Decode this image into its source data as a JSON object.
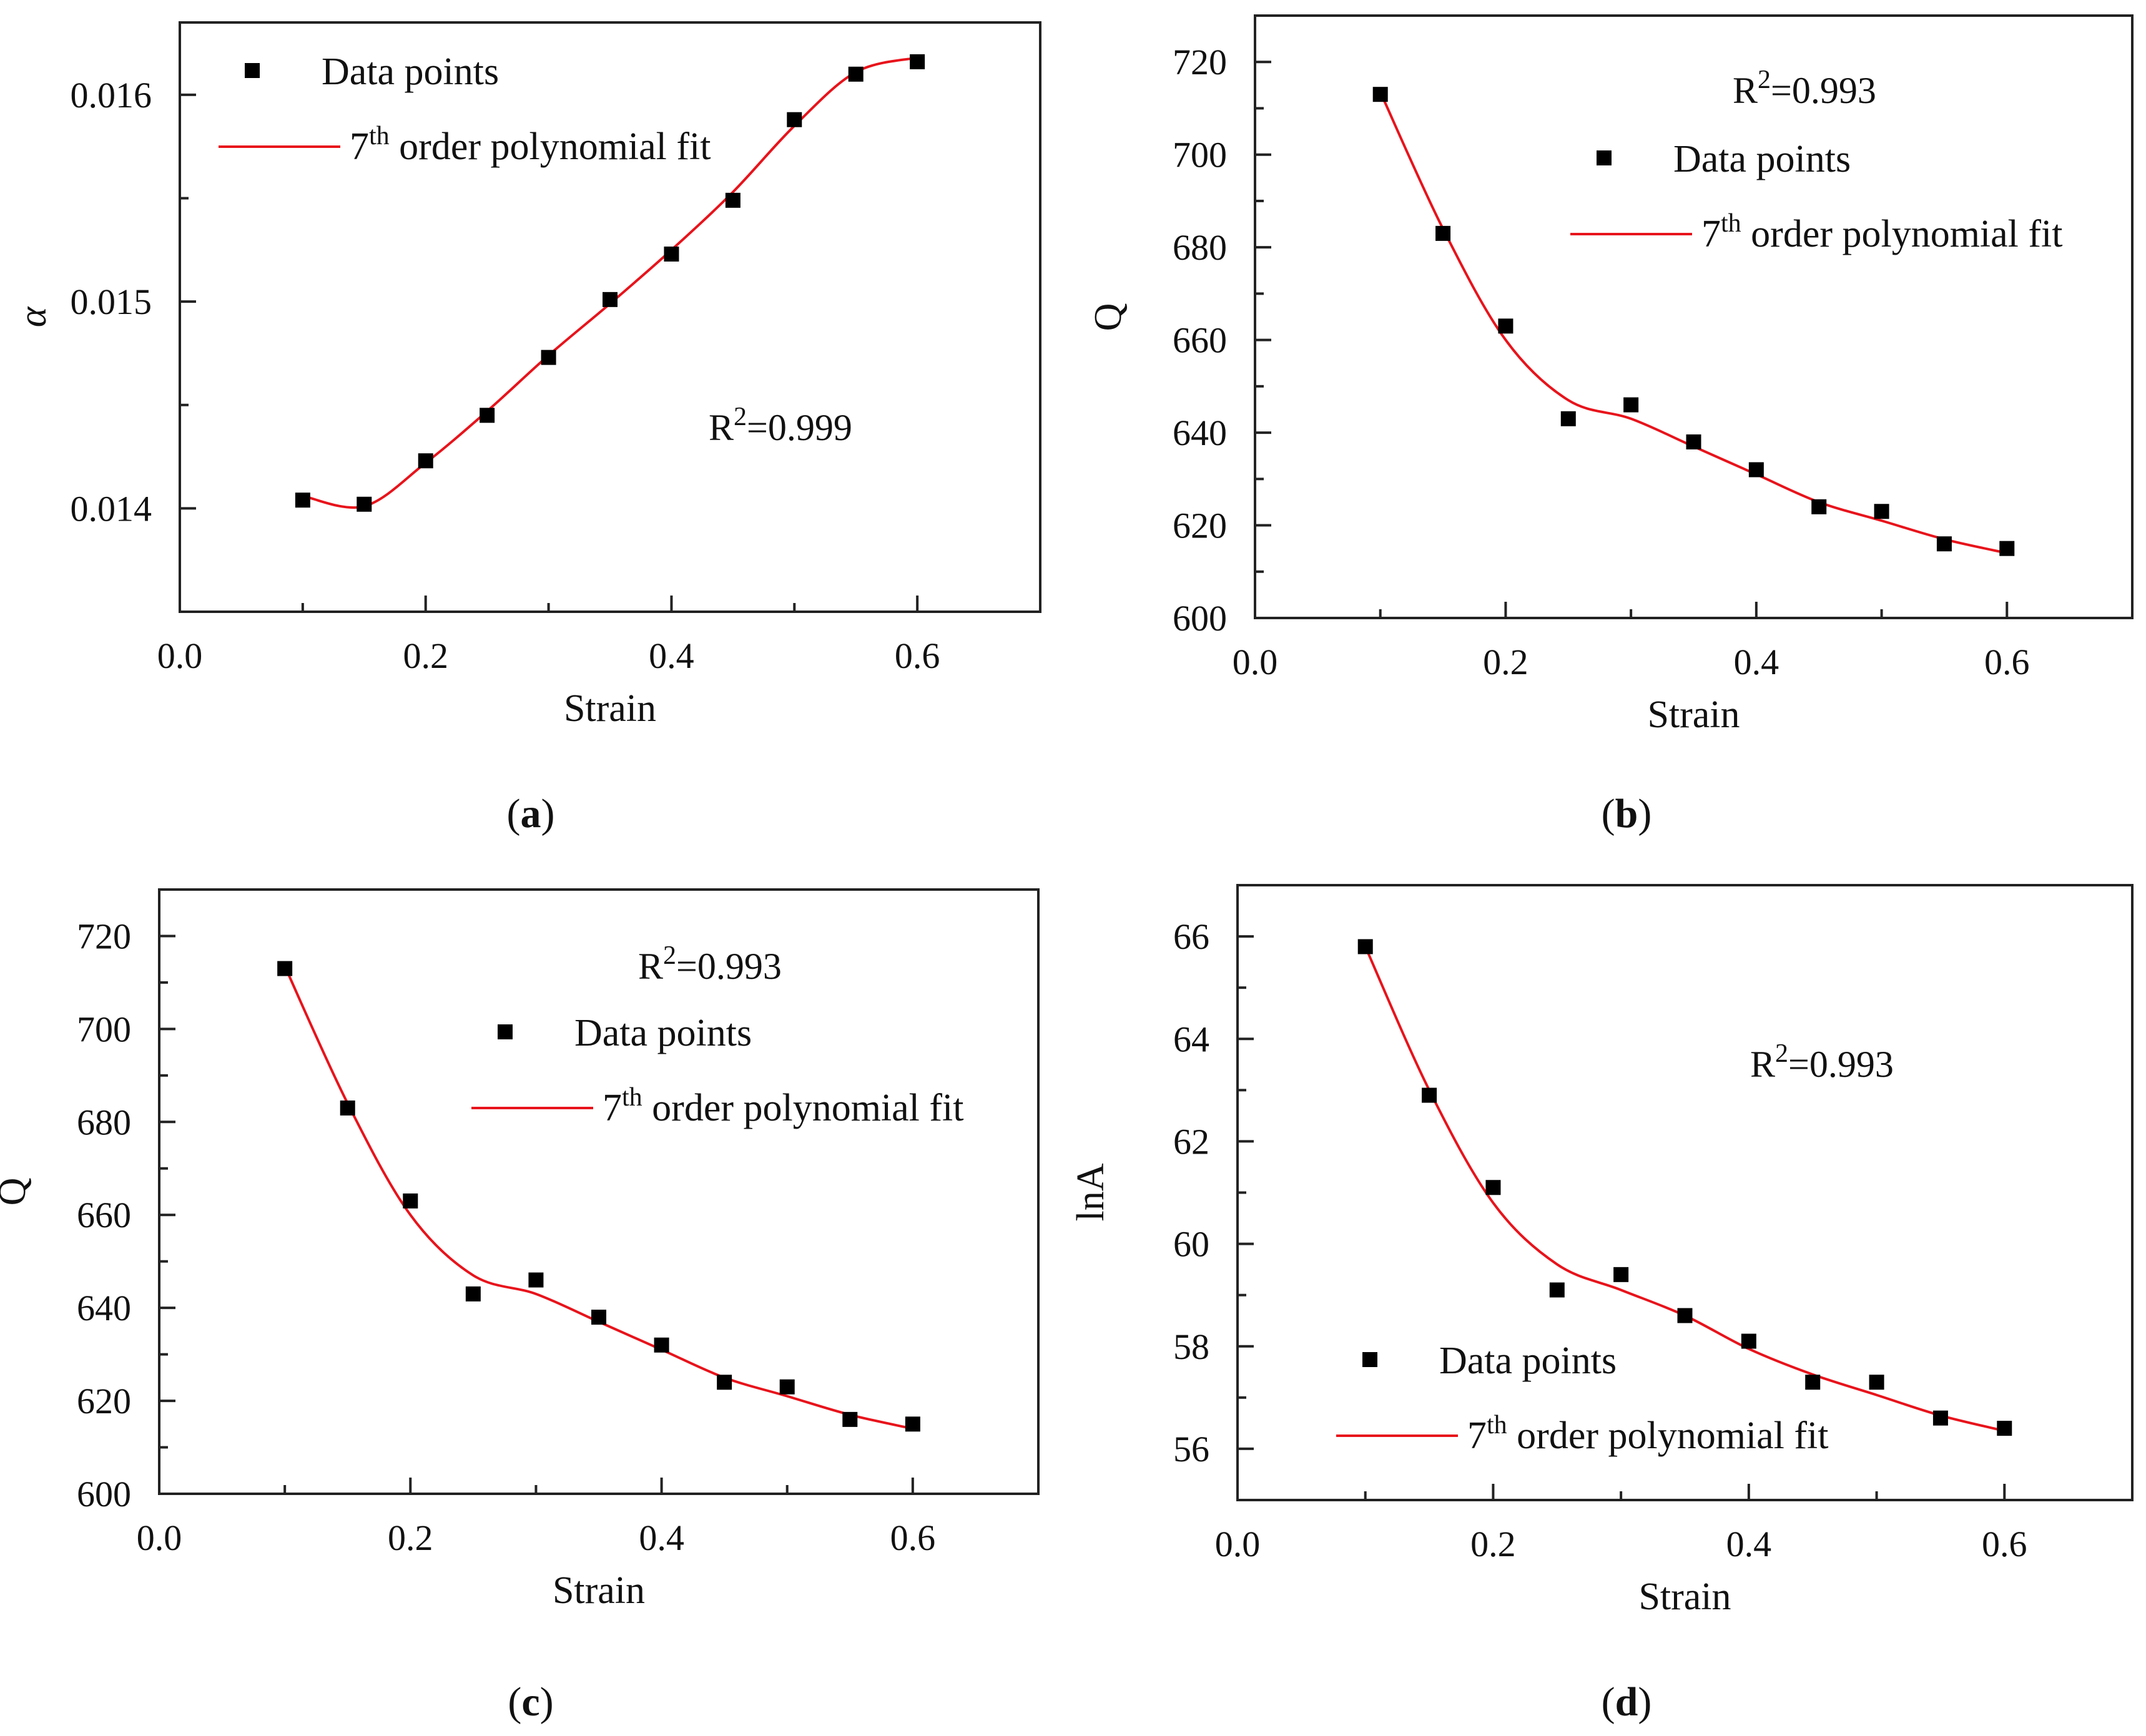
{
  "colors": {
    "fit": "#e8131b",
    "points": "#000000"
  },
  "chart_data": [
    {
      "id": "a",
      "type": "scatter",
      "caption_letter": "a",
      "xlabel": "Strain",
      "ylabel": "α",
      "xlim": [
        0.0,
        0.7
      ],
      "ylim": [
        0.0135,
        0.01635
      ],
      "xticks": [
        "0.0",
        "0.2",
        "0.4",
        "0.6"
      ],
      "yticks": [
        "0.014",
        "0.015",
        "0.016"
      ],
      "legend": {
        "position": "top-left",
        "points_label": "Data points",
        "fit_order": "7",
        "fit_sup": "th",
        "fit_label": " order polynomial fit"
      },
      "r2_base": "R",
      "r2_sup": "2",
      "r2_value": "=0.999",
      "x": [
        0.1,
        0.15,
        0.2,
        0.25,
        0.3,
        0.35,
        0.4,
        0.45,
        0.5,
        0.55,
        0.6
      ],
      "series": [
        {
          "name": "Data points",
          "values": [
            0.01404,
            0.01402,
            0.01423,
            0.01445,
            0.01473,
            0.01501,
            0.01523,
            0.01549,
            0.01588,
            0.0161,
            0.01616
          ]
        },
        {
          "name": "7th order polynomial fit",
          "values": [
            0.01406,
            0.01401,
            0.01422,
            0.01447,
            0.01474,
            0.01499,
            0.01525,
            0.01553,
            0.01585,
            0.01611,
            0.01618
          ]
        }
      ]
    },
    {
      "id": "b",
      "type": "scatter",
      "caption_letter": "b",
      "xlabel": "Strain",
      "ylabel": "Q",
      "xlim": [
        0.0,
        0.7
      ],
      "ylim": [
        600,
        730
      ],
      "xticks": [
        "0.0",
        "0.2",
        "0.4",
        "0.6"
      ],
      "yticks": [
        "600",
        "620",
        "640",
        "660",
        "680",
        "700",
        "720"
      ],
      "legend": {
        "position": "top-right",
        "points_label": "Data points",
        "fit_order": "7",
        "fit_sup": "th",
        "fit_label": " order polynomial fit"
      },
      "r2_base": "R",
      "r2_sup": "2",
      "r2_value": "=0.993",
      "x": [
        0.1,
        0.15,
        0.2,
        0.25,
        0.3,
        0.35,
        0.4,
        0.45,
        0.5,
        0.55,
        0.6
      ],
      "series": [
        {
          "name": "Data points",
          "values": [
            713,
            683,
            663,
            643,
            646,
            638,
            632,
            624,
            623,
            616,
            615
          ]
        },
        {
          "name": "7th order polynomial fit",
          "values": [
            713.5,
            684,
            660,
            647,
            643,
            637,
            631,
            625,
            621,
            617,
            614
          ]
        }
      ]
    },
    {
      "id": "c",
      "type": "scatter",
      "caption_letter": "c",
      "xlabel": "Strain",
      "ylabel": "Q",
      "xlim": [
        0.0,
        0.7
      ],
      "ylim": [
        600,
        730
      ],
      "xticks": [
        "0.0",
        "0.2",
        "0.4",
        "0.6"
      ],
      "yticks": [
        "600",
        "620",
        "640",
        "660",
        "680",
        "700",
        "720"
      ],
      "legend": {
        "position": "top-right",
        "points_label": "Data points",
        "fit_order": "7",
        "fit_sup": "th",
        "fit_label": " order polynomial fit"
      },
      "r2_base": "R",
      "r2_sup": "2",
      "r2_value": "=0.993",
      "x": [
        0.1,
        0.15,
        0.2,
        0.25,
        0.3,
        0.35,
        0.4,
        0.45,
        0.5,
        0.55,
        0.6
      ],
      "series": [
        {
          "name": "Data points",
          "values": [
            713,
            683,
            663,
            643,
            646,
            638,
            632,
            624,
            623,
            616,
            615
          ]
        },
        {
          "name": "7th order polynomial fit",
          "values": [
            713.5,
            684,
            660,
            647,
            643,
            637,
            631,
            625,
            621,
            617,
            614
          ]
        }
      ]
    },
    {
      "id": "d",
      "type": "scatter",
      "caption_letter": "d",
      "xlabel": "Strain",
      "ylabel": "lnA",
      "xlim": [
        0.0,
        0.7
      ],
      "ylim": [
        55.0,
        67.0
      ],
      "xticks": [
        "0.0",
        "0.2",
        "0.4",
        "0.6"
      ],
      "yticks": [
        "56",
        "58",
        "60",
        "62",
        "64",
        "66"
      ],
      "legend": {
        "position": "bottom-left",
        "points_label": "Data points",
        "fit_order": "7",
        "fit_sup": "th",
        "fit_label": " order polynomial fit"
      },
      "r2_base": "R",
      "r2_sup": "2",
      "r2_value": "=0.993",
      "x": [
        0.1,
        0.15,
        0.2,
        0.25,
        0.3,
        0.35,
        0.4,
        0.45,
        0.5,
        0.55,
        0.6
      ],
      "series": [
        {
          "name": "Data points",
          "values": [
            65.8,
            62.9,
            61.1,
            59.1,
            59.4,
            58.6,
            58.1,
            57.3,
            57.3,
            56.6,
            56.4
          ]
        },
        {
          "name": "7th order polynomial fit",
          "values": [
            65.8,
            63.0,
            60.8,
            59.6,
            59.1,
            58.6,
            57.95,
            57.45,
            57.05,
            56.65,
            56.35
          ]
        }
      ]
    }
  ]
}
